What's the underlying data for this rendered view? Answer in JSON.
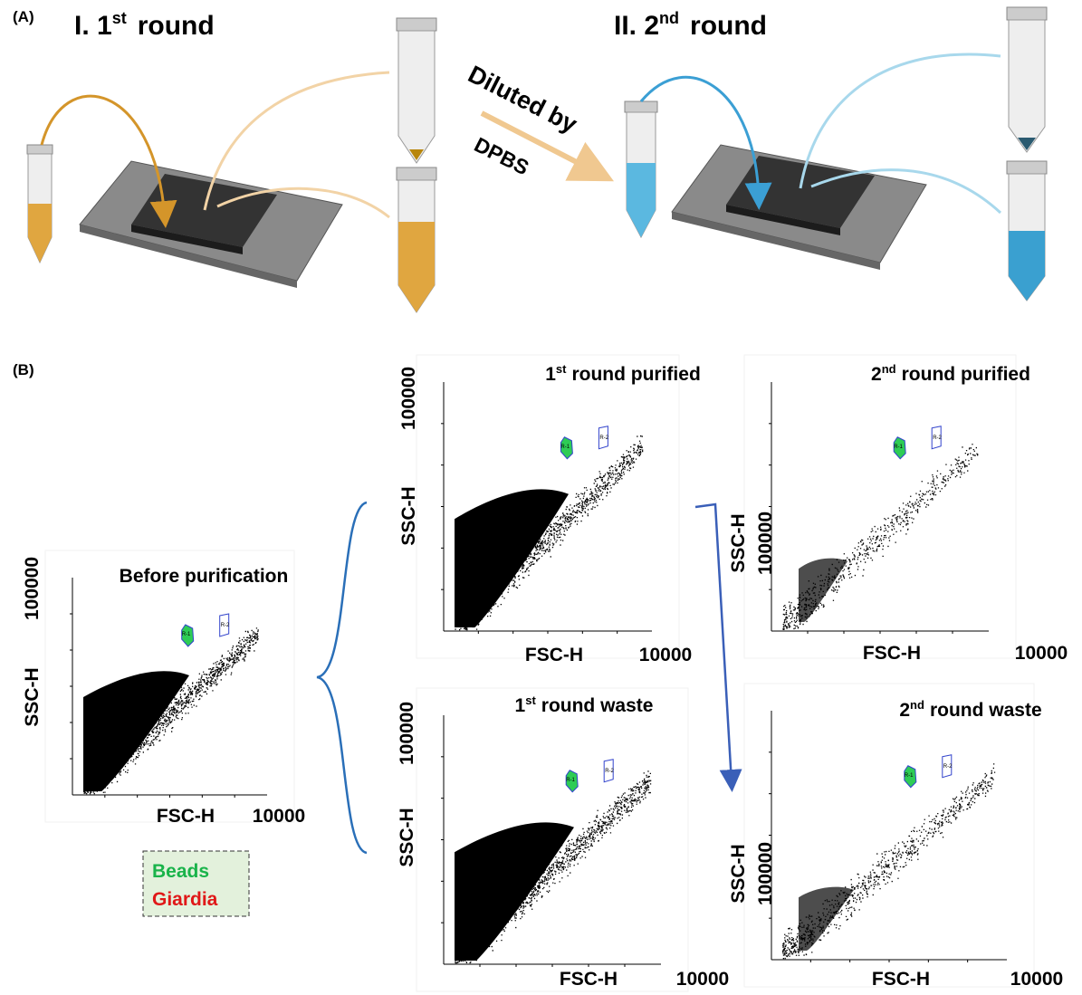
{
  "panel_a": {
    "label": "(A)",
    "round1": {
      "prefix": "I. 1",
      "sup": "st",
      "suffix": "round"
    },
    "round2": {
      "prefix": "II. 2",
      "sup": "nd",
      "suffix": "round"
    },
    "arrow_label_top": "Diluted by",
    "arrow_label_bottom": "DPBS"
  },
  "panel_b": {
    "label": "(B)",
    "plots": [
      {
        "title": {
          "text": "Before purification"
        },
        "x_label": "FSC-H",
        "x_max": "10000",
        "y_label": "SSC-H",
        "y_max": "100000",
        "gates": [
          "R-1",
          "R-2"
        ]
      },
      {
        "title": {
          "num": "1",
          "sup": "st",
          "text": "round purified"
        },
        "x_label": "FSC-H",
        "x_max": "10000",
        "y_label": "SSC-H",
        "y_max": "100000",
        "gates": [
          "R-1",
          "R-2"
        ]
      },
      {
        "title": {
          "num": "1",
          "sup": "st",
          "text": "round waste"
        },
        "x_label": "FSC-H",
        "x_max": "10000",
        "y_label": "SSC-H",
        "y_max": "100000",
        "gates": [
          "R-1",
          "R-2"
        ]
      },
      {
        "title": {
          "num": "2",
          "sup": "nd",
          "text": "round purified"
        },
        "x_label": "FSC-H",
        "x_max": "10000",
        "y_label": "SSC-H",
        "y_max": "100000",
        "gates": [
          "R-1",
          "R-2"
        ]
      },
      {
        "title": {
          "num": "2",
          "sup": "nd",
          "text": "round waste"
        },
        "x_label": "FSC-H",
        "x_max": "10000",
        "y_label": "SSC-H",
        "y_max": "100000",
        "gates": [
          "R-1",
          "R-2"
        ]
      }
    ],
    "legend": [
      "Beads",
      "Giardia"
    ]
  }
}
